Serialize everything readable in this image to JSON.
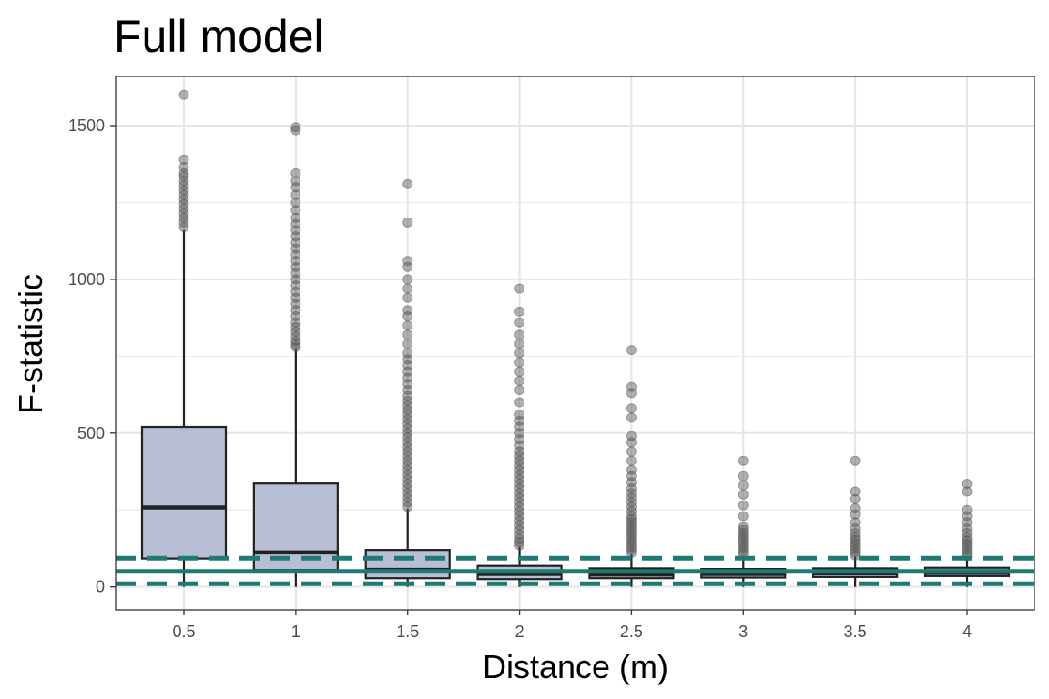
{
  "chart_data": {
    "type": "boxplot",
    "title": "Full model",
    "xlabel": "Distance (m)",
    "ylabel": "F-statistic",
    "categories": [
      "0.5",
      "1",
      "1.5",
      "2",
      "2.5",
      "3",
      "3.5",
      "4"
    ],
    "ylim": [
      -75,
      1660
    ],
    "yticks": [
      0,
      500,
      1000,
      1500
    ],
    "grid": true,
    "legend": "none",
    "box_color": "#b8bfd5",
    "outlier_color": "#555555",
    "reference_color": "#1f7a74",
    "boxes": [
      {
        "category": "0.5",
        "lower_whisker": 0,
        "q1": 92,
        "median": 258,
        "q3": 520,
        "upper_whisker": 1160,
        "outliers": [
          1170,
          1185,
          1200,
          1215,
          1230,
          1245,
          1260,
          1275,
          1290,
          1305,
          1320,
          1335,
          1345,
          1365,
          1390,
          1600
        ]
      },
      {
        "category": "1",
        "lower_whisker": 0,
        "q1": 55,
        "median": 112,
        "q3": 336,
        "upper_whisker": 775,
        "outliers": [
          780,
          790,
          800,
          815,
          830,
          845,
          860,
          880,
          900,
          920,
          940,
          960,
          980,
          1000,
          1020,
          1040,
          1060,
          1080,
          1100,
          1120,
          1140,
          1160,
          1180,
          1200,
          1225,
          1250,
          1275,
          1300,
          1320,
          1345,
          1485,
          1495
        ]
      },
      {
        "category": "1.5",
        "lower_whisker": 0,
        "q1": 28,
        "median": 55,
        "q3": 120,
        "upper_whisker": 255,
        "outliers": [
          260,
          275,
          290,
          305,
          320,
          335,
          350,
          365,
          380,
          395,
          410,
          425,
          440,
          455,
          470,
          485,
          500,
          515,
          530,
          545,
          560,
          575,
          590,
          605,
          620,
          640,
          660,
          680,
          700,
          720,
          740,
          760,
          790,
          820,
          850,
          880,
          900,
          940,
          970,
          1000,
          1040,
          1060,
          1185,
          1310
        ]
      },
      {
        "category": "2",
        "lower_whisker": 0,
        "q1": 25,
        "median": 42,
        "q3": 68,
        "upper_whisker": 130,
        "outliers": [
          135,
          145,
          155,
          170,
          185,
          200,
          215,
          230,
          245,
          260,
          275,
          290,
          305,
          320,
          335,
          350,
          365,
          380,
          395,
          410,
          425,
          440,
          460,
          480,
          500,
          520,
          540,
          560,
          600,
          640,
          670,
          700,
          730,
          760,
          790,
          820,
          860,
          895,
          970
        ]
      },
      {
        "category": "2.5",
        "lower_whisker": 0,
        "q1": 28,
        "median": 40,
        "q3": 60,
        "upper_whisker": 105,
        "outliers": [
          110,
          120,
          130,
          140,
          150,
          160,
          170,
          180,
          190,
          200,
          210,
          220,
          230,
          245,
          260,
          275,
          290,
          305,
          320,
          340,
          360,
          380,
          410,
          440,
          470,
          490,
          550,
          580,
          630,
          650,
          770
        ]
      },
      {
        "category": "3",
        "lower_whisker": 0,
        "q1": 30,
        "median": 42,
        "q3": 58,
        "upper_whisker": 100,
        "outliers": [
          105,
          115,
          125,
          135,
          145,
          155,
          165,
          175,
          185,
          195,
          230,
          265,
          300,
          330,
          360,
          410
        ]
      },
      {
        "category": "3.5",
        "lower_whisker": 0,
        "q1": 32,
        "median": 44,
        "q3": 60,
        "upper_whisker": 98,
        "outliers": [
          102,
          112,
          122,
          132,
          142,
          152,
          162,
          175,
          190,
          210,
          235,
          255,
          285,
          310,
          410
        ]
      },
      {
        "category": "4",
        "lower_whisker": 0,
        "q1": 35,
        "median": 46,
        "q3": 62,
        "upper_whisker": 95,
        "outliers": [
          100,
          110,
          120,
          130,
          140,
          150,
          160,
          175,
          190,
          210,
          230,
          250,
          310,
          335
        ]
      }
    ],
    "reference_lines": [
      {
        "value": 93,
        "style": "dashed"
      },
      {
        "value": 50,
        "style": "solid"
      },
      {
        "value": 10,
        "style": "dashed"
      }
    ]
  }
}
